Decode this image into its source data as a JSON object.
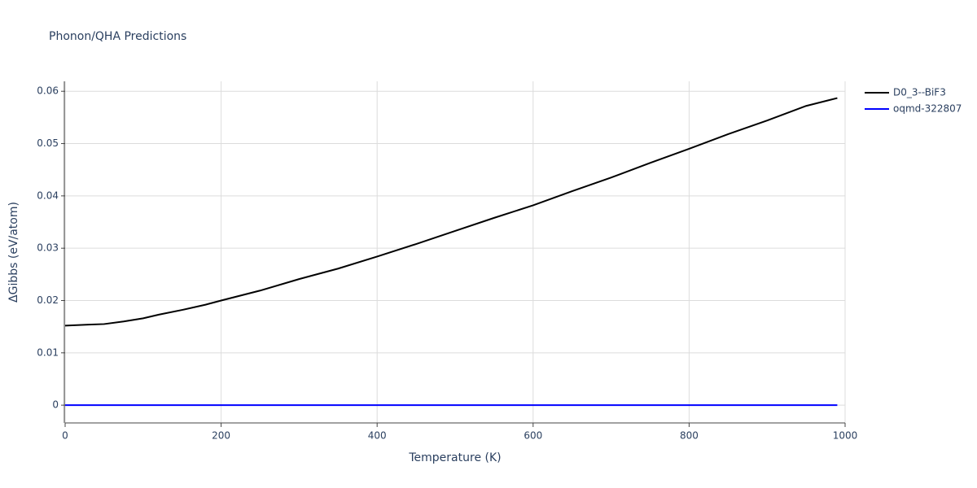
{
  "chart_data": {
    "type": "line",
    "title": "Phonon/QHA Predictions",
    "x_label": "Temperature (K)",
    "y_label": "ΔGibbs (eV/atom)",
    "xlim": [
      0,
      1000
    ],
    "xticks": [
      0,
      200,
      400,
      600,
      800,
      1000
    ],
    "ylim": [
      -0.0034,
      0.0619
    ],
    "yticks": [
      0,
      0.01,
      0.02,
      0.03,
      0.04,
      0.05,
      0.06
    ],
    "grid": true,
    "legend": "top-right",
    "series": [
      {
        "name": "D0_3--BiF3",
        "color": "#000000",
        "x": [
          0,
          30,
          50,
          75,
          100,
          120,
          150,
          180,
          200,
          250,
          300,
          350,
          400,
          450,
          500,
          550,
          600,
          650,
          700,
          750,
          800,
          850,
          900,
          950,
          990
        ],
        "values": [
          0.0152,
          0.0154,
          0.0155,
          0.016,
          0.0166,
          0.0173,
          0.0182,
          0.0192,
          0.02,
          0.0219,
          0.0241,
          0.0261,
          0.0284,
          0.0308,
          0.0333,
          0.0358,
          0.0382,
          0.0409,
          0.0435,
          0.0463,
          0.049,
          0.0518,
          0.0544,
          0.0572,
          0.0587
        ]
      },
      {
        "name": "oqmd-322807",
        "color": "#0000ff",
        "x": [
          0,
          990
        ],
        "values": [
          0,
          0
        ]
      }
    ]
  }
}
